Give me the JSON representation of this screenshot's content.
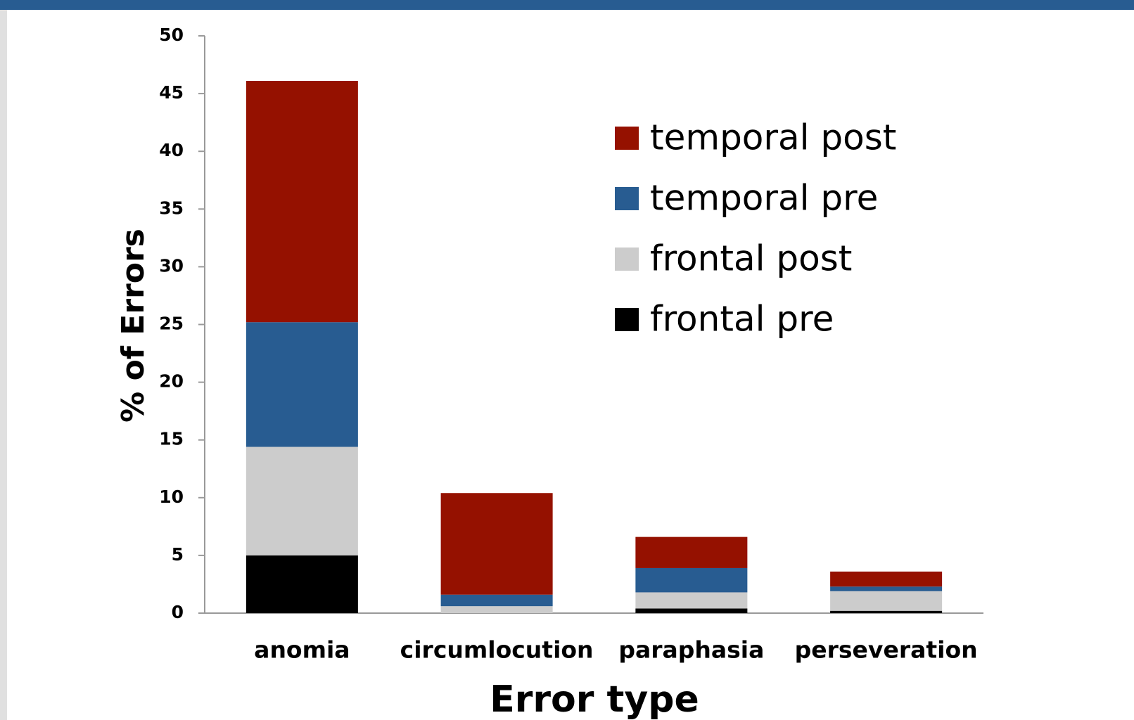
{
  "chart_data": {
    "type": "stacked_bar",
    "x_label": "Error type",
    "y_label": "% of Errors",
    "categories": [
      "anomia",
      "circumlocution",
      "paraphasia",
      "perseveration"
    ],
    "series": [
      {
        "name": "temporal post",
        "color": "#951100",
        "values": [
          20.9,
          8.8,
          2.7,
          1.3
        ]
      },
      {
        "name": "temporal pre",
        "color": "#285c91",
        "values": [
          10.8,
          1.0,
          2.1,
          0.4
        ]
      },
      {
        "name": "frontal post",
        "color": "#cccccc",
        "values": [
          9.4,
          0.6,
          1.4,
          1.7
        ]
      },
      {
        "name": "frontal pre",
        "color": "#000000",
        "values": [
          5,
          0,
          0.4,
          0.2
        ]
      }
    ],
    "ylim": [
      0,
      50
    ],
    "yticks": [
      0,
      5,
      10,
      15,
      20,
      25,
      30,
      35,
      40,
      45,
      50
    ]
  }
}
